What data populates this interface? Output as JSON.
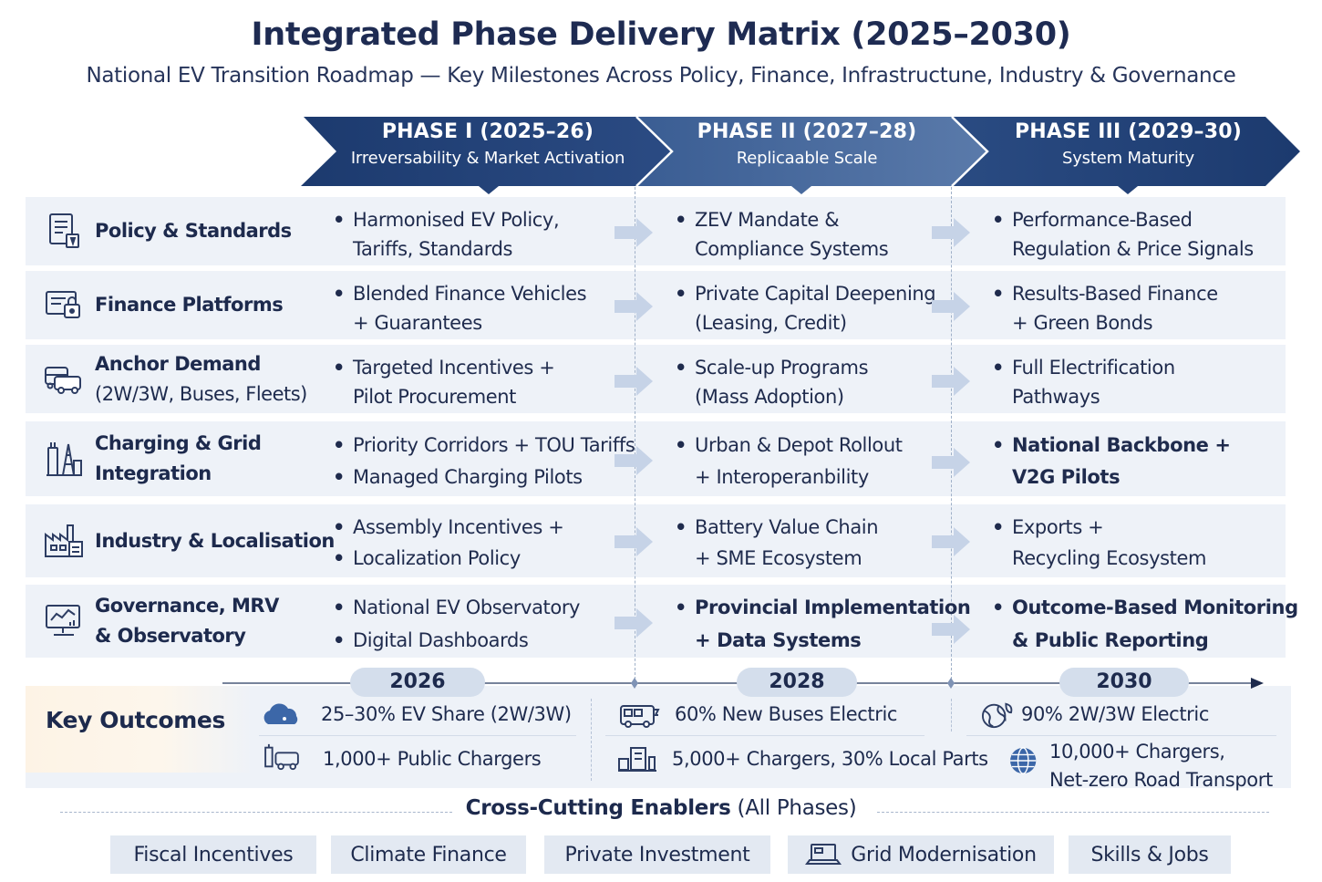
{
  "title": "Integrated Phase Delivery Matrix (2025–2030)",
  "subtitle": "National EV Transition Roadmap — Key Milestones Across Policy, Finance, Infrastructune, Industry & Governance",
  "phases": [
    {
      "name": "PHASE I  (2025–26)",
      "sub": "Irreversability & Market Activation"
    },
    {
      "name": "PHASE II  (2027–28)",
      "sub": "Replicaable Scale"
    },
    {
      "name": "PHASE III  (2029–30)",
      "sub": "System Maturity"
    }
  ],
  "rows": [
    {
      "title": "Policy & Standards",
      "title_sub": "",
      "icon": "policy-document-icon",
      "c1": [
        "Harmonised EV Policy,",
        "Tariffs, Standards"
      ],
      "c2": [
        "ZEV Mandate &",
        "Compliance Systems"
      ],
      "c3": [
        "Performance-Based",
        "Regulation & Price Signals"
      ]
    },
    {
      "title": "Finance Platforms",
      "title_sub": "",
      "icon": "finance-icon",
      "c1": [
        "Blended Finance Vehicles",
        "+ Guarantees"
      ],
      "c2": [
        "Private Capital Deepening",
        "(Leasing, Credit)"
      ],
      "c3": [
        "Results-Based Finance",
        "+ Green Bonds"
      ]
    },
    {
      "title": "Anchor Demand",
      "title_sub": "(2W/3W, Buses, Fleets)",
      "icon": "vehicles-icon",
      "c1": [
        "Targeted Incentives +",
        "Pilot Procurement"
      ],
      "c2": [
        "Scale-up Programs",
        "(Mass Adoption)"
      ],
      "c3": [
        "Full Electrification",
        "Pathways"
      ]
    },
    {
      "title": "Charging & Grid",
      "title_sub": "Integration",
      "icon": "charging-grid-icon",
      "c1": [
        "Priority Corridors + TOU Tariffs",
        "Managed Charging Pilots"
      ],
      "c2": [
        "Urban & Depot Rollout",
        "+ Interoperanbility"
      ],
      "c3": [
        "National Backbone +",
        "V2G Pilots"
      ]
    },
    {
      "title": "Industry & Localisation",
      "title_sub": "",
      "icon": "factory-icon",
      "c1": [
        "Assembly Incentives +",
        "Localization Policy"
      ],
      "c2": [
        "Battery Value Chain",
        "+ SME Ecosystem"
      ],
      "c3": [
        "Exports +",
        "Recycling Ecosystem"
      ]
    },
    {
      "title": "Governance, MRV",
      "title_sub": "& Observatory",
      "icon": "dashboard-icon",
      "c1": [
        "National EV Observatory",
        "Digital Dashboards"
      ],
      "c2": [
        "Provincial Implementation",
        "+ Data Systems"
      ],
      "c3": [
        "Outcome-Based Monitoring",
        "& Public Reporting"
      ]
    }
  ],
  "timeline": {
    "years": [
      "2026",
      "2028",
      "2030"
    ]
  },
  "outcomes": {
    "title": "Key Outcomes",
    "items": [
      {
        "text": "25–30% EV Share (2W/3W)",
        "icon": "cloud-icon"
      },
      {
        "text": "1,000+ Public Chargers",
        "icon": "charger-vehicle-icon"
      },
      {
        "text": "60% New Buses Electric",
        "icon": "bus-icon"
      },
      {
        "text": "5,000+ Chargers, 30% Local Parts",
        "icon": "charger-parts-icon"
      },
      {
        "text": "90% 2W/3W Electric",
        "icon": "globe-leaf-icon"
      },
      {
        "text": "10,000+ Chargers,",
        "text2": "Net-zero Road Transport",
        "icon": "globe-icon"
      }
    ]
  },
  "enablers": {
    "title_bold": "Cross-Cutting Enablers",
    "title_rest": "(All Phases)",
    "items": [
      "Fiscal Incentives",
      "Climate Finance",
      "Private Investment",
      "Grid Modernisation",
      "Skills & Jobs"
    ]
  },
  "colors": {
    "phase1": "#1f3e74",
    "phase2": "#2f5289",
    "phase3": "#1f3e74",
    "row_bg": "#eef2f8",
    "arrow": "#c3d1e6"
  }
}
